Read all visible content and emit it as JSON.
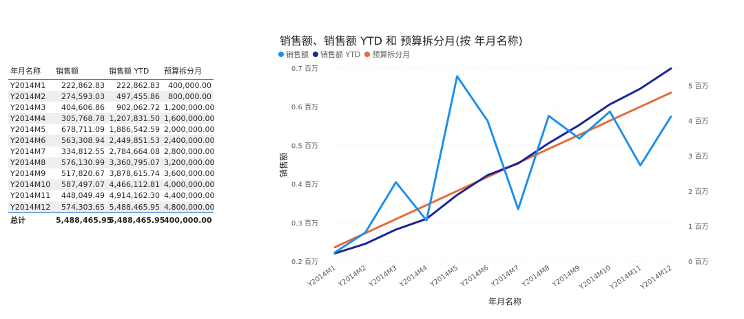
{
  "table": {
    "headers": [
      "年月名称",
      "销售额",
      "销售额 YTD",
      "预算拆分月"
    ],
    "rows": [
      [
        "Y2014M1",
        "222,862.83",
        "222,862.83",
        "400,000.00"
      ],
      [
        "Y2014M2",
        "274,593.03",
        "497,455.86",
        "800,000.00"
      ],
      [
        "Y2014M3",
        "404,606.86",
        "902,062.72",
        "1,200,000.00"
      ],
      [
        "Y2014M4",
        "305,768.78",
        "1,207,831.50",
        "1,600,000.00"
      ],
      [
        "Y2014M5",
        "678,711.09",
        "1,886,542.59",
        "2,000,000.00"
      ],
      [
        "Y2014M6",
        "563,308.94",
        "2,449,851.53",
        "2,400,000.00"
      ],
      [
        "Y2014M7",
        "334,812.55",
        "2,784,664.08",
        "2,800,000.00"
      ],
      [
        "Y2014M8",
        "576,130.99",
        "3,360,795.07",
        "3,200,000.00"
      ],
      [
        "Y2014M9",
        "517,820.67",
        "3,878,615.74",
        "3,600,000.00"
      ],
      [
        "Y2014M10",
        "587,497.07",
        "4,466,112.81",
        "4,000,000.00"
      ],
      [
        "Y2014M11",
        "448,049.49",
        "4,914,162.30",
        "4,400,000.00"
      ],
      [
        "Y2014M12",
        "574,303.65",
        "5,488,465.95",
        "4,800,000.00"
      ]
    ],
    "total": [
      "总计",
      "5,488,465.95",
      "5,488,465.95",
      "400,000.00"
    ]
  },
  "chart_data": {
    "type": "line",
    "title": "销售额、销售额 YTD 和 预算拆分月(按 年月名称)",
    "xlabel": "年月名称",
    "ylabel": "销售额",
    "categories": [
      "Y2014M1",
      "Y2014M2",
      "Y2014M3",
      "Y2014M4",
      "Y2014M5",
      "Y2014M6",
      "Y2014M7",
      "Y2014M8",
      "Y2014M9",
      "Y2014M10",
      "Y2014M11",
      "Y2014M12"
    ],
    "left_axis": {
      "ylim": [
        200000,
        700000
      ],
      "ticks": [
        200000,
        300000,
        400000,
        500000,
        600000,
        700000
      ],
      "tick_labels": [
        "0.2 百万",
        "0.3 百万",
        "0.4 百万",
        "0.5 百万",
        "0.6 百万",
        "0.7 百万"
      ]
    },
    "right_axis": {
      "ylim": [
        0,
        5500000
      ],
      "ticks": [
        0,
        1000000,
        2000000,
        3000000,
        4000000,
        5000000
      ],
      "tick_labels": [
        "0 百万",
        "1 百万",
        "2 百万",
        "3 百万",
        "4 百万",
        "5 百万"
      ]
    },
    "series": [
      {
        "name": "销售额",
        "axis": "left",
        "color": "#1f8fea",
        "values": [
          222862.83,
          274593.03,
          404606.86,
          305768.78,
          678711.09,
          563308.94,
          334812.55,
          576130.99,
          517820.67,
          587497.07,
          448049.49,
          574303.65
        ]
      },
      {
        "name": "销售额 YTD",
        "axis": "right",
        "color": "#1c2596",
        "values": [
          222862.83,
          497455.86,
          902062.72,
          1207831.5,
          1886542.59,
          2449851.53,
          2784664.08,
          3360795.07,
          3878615.74,
          4466112.81,
          4914162.3,
          5488465.95
        ]
      },
      {
        "name": "预算拆分月",
        "axis": "right",
        "color": "#e66c37",
        "values": [
          400000,
          800000,
          1200000,
          1600000,
          2000000,
          2400000,
          2800000,
          3200000,
          3600000,
          4000000,
          4400000,
          4800000
        ]
      }
    ],
    "grid": true,
    "legend": "top-left"
  }
}
